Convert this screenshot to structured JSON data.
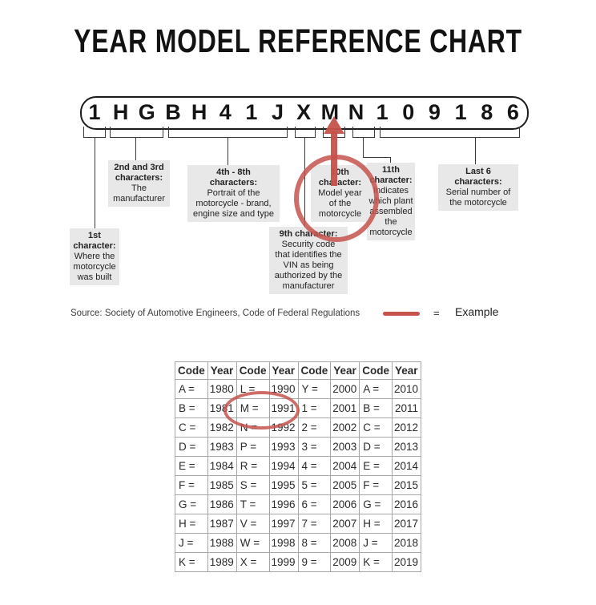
{
  "title": "YEAR MODEL REFERENCE CHART",
  "vin": "1HGBH41JXMN109186",
  "accent_color": "#c5534c",
  "callouts": [
    {
      "heading": "1st\ncharacter:",
      "body": "Where the\nmotorcycle\nwas built"
    },
    {
      "heading": "2nd and 3rd\ncharacters:",
      "body": "The\nmanufacturer"
    },
    {
      "heading": "4th - 8th\ncharacters:",
      "body": "Portrait of the\nmotorcycle - brand,\nengine size and type"
    },
    {
      "heading": "9th character:",
      "body": "Security code\nthat identifies the\nVIN as being\nauthorized by the\nmanufacturer"
    },
    {
      "heading": "10th\ncharacter:",
      "body": "Model year\nof the\nmotorcycle"
    },
    {
      "heading": "11th\ncharacter:",
      "body": "Indicates\nwhich plant\nassembled\nthe\nmotorcycle"
    },
    {
      "heading": "Last 6\ncharacters:",
      "body": "Serial number of\nthe motorcycle"
    }
  ],
  "source_line": "Source:  Society of Automotive Engineers, Code of Federal Regulations",
  "legend": {
    "equals": "=",
    "label": "Example"
  },
  "example_highlight": "M = 1991",
  "chart_data": {
    "type": "table",
    "columns": [
      "Code",
      "Year",
      "Code",
      "Year",
      "Code",
      "Year",
      "Code",
      "Year"
    ],
    "rows": [
      [
        "A =",
        "1980",
        "L =",
        "1990",
        "Y =",
        "2000",
        "A =",
        "2010"
      ],
      [
        "B =",
        "1981",
        "M =",
        "1991",
        "1 =",
        "2001",
        "B =",
        "2011"
      ],
      [
        "C =",
        "1982",
        "N =",
        "1992",
        "2 =",
        "2002",
        "C =",
        "2012"
      ],
      [
        "D =",
        "1983",
        "P =",
        "1993",
        "3 =",
        "2003",
        "D =",
        "2013"
      ],
      [
        "E =",
        "1984",
        "R =",
        "1994",
        "4 =",
        "2004",
        "E =",
        "2014"
      ],
      [
        "F =",
        "1985",
        "S =",
        "1995",
        "5 =",
        "2005",
        "F =",
        "2015"
      ],
      [
        "G =",
        "1986",
        "T =",
        "1996",
        "6 =",
        "2006",
        "G =",
        "2016"
      ],
      [
        "H =",
        "1987",
        "V =",
        "1997",
        "7 =",
        "2007",
        "H =",
        "2017"
      ],
      [
        "J =",
        "1988",
        "W =",
        "1998",
        "8 =",
        "2008",
        "J =",
        "2018"
      ],
      [
        "K =",
        "1989",
        "X =",
        "1999",
        "9 =",
        "2009",
        "K =",
        "2019"
      ]
    ]
  }
}
